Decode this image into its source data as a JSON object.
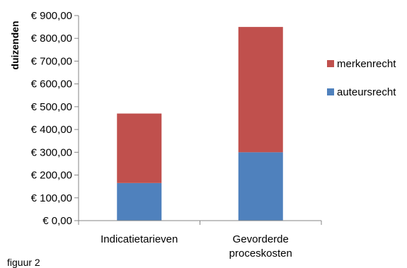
{
  "chart_data": {
    "type": "bar",
    "stacked": true,
    "title": "",
    "xlabel": "",
    "ylabel": "duizenden",
    "ylim": [
      0,
      900
    ],
    "ytick_step": 100,
    "ytick_labels": [
      "€ 0,00",
      "€ 100,00",
      "€ 200,00",
      "€ 300,00",
      "€ 400,00",
      "€ 500,00",
      "€ 600,00",
      "€ 700,00",
      "€ 800,00",
      "€ 900,00"
    ],
    "categories": [
      [
        "Indicatietarieven"
      ],
      [
        "Gevorderde",
        "proceskosten"
      ]
    ],
    "series": [
      {
        "name": "auteursrecht",
        "color": "#4f81bd",
        "values": [
          165,
          300
        ]
      },
      {
        "name": "merkenrecht",
        "color": "#c0504d",
        "values": [
          305,
          550
        ]
      }
    ],
    "legend_position": "right",
    "legend_order": [
      "merkenrecht",
      "auteursrecht"
    ],
    "grid": false
  },
  "caption": "figuur 2"
}
